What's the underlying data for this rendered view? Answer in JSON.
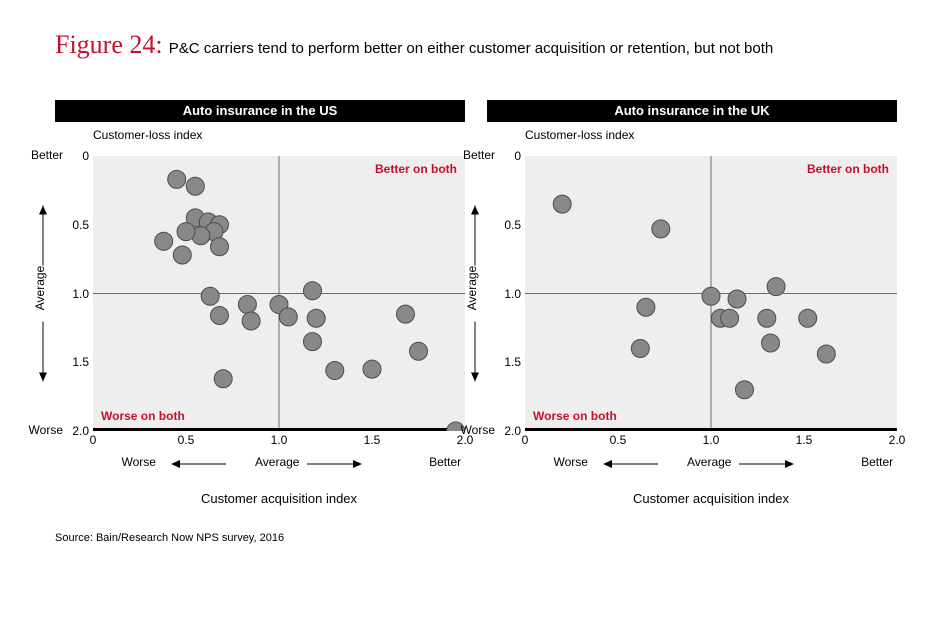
{
  "figure": {
    "number_label": "Figure 24:",
    "title": "P&C carriers tend to perform better on either customer acquisition or retention, but not both",
    "title_color": "#c8102e"
  },
  "source": "Source: Bain/Research Now NPS survey, 2016",
  "common": {
    "plot_bg": "#eeeeee",
    "page_bg": "#ffffff",
    "axis_line_color": "#000000",
    "divider_color": "#6b6b6b",
    "marker_fill": "#888888",
    "marker_stroke": "#4d4d4d",
    "marker_radius": 9,
    "annotation_color": "#c8102e",
    "font_family": "Helvetica Neue, Arial, sans-serif",
    "y_axis_title": "Customer-loss index",
    "x_axis_title": "Customer acquisition index",
    "xlim": [
      0,
      2.0
    ],
    "ylim": [
      0,
      2.0
    ],
    "x_ticks": [
      "0",
      "0.5",
      "1.0",
      "1.5",
      "2.0"
    ],
    "y_ticks": [
      "0",
      "0.5",
      "1.0",
      "1.5",
      "2.0"
    ],
    "y_better_label": "Better",
    "y_worse_label": "Worse",
    "x_worse_label": "Worse",
    "x_better_label": "Better",
    "average_label": "Average",
    "better_both_label": "Better on both",
    "worse_both_label": "Worse on both",
    "x_mid": 1.0,
    "y_mid": 1.0
  },
  "panels": [
    {
      "title": "Auto insurance in the US",
      "type": "scatter",
      "points": [
        {
          "x": 0.45,
          "y": 0.17
        },
        {
          "x": 0.55,
          "y": 0.22
        },
        {
          "x": 0.55,
          "y": 0.45
        },
        {
          "x": 0.62,
          "y": 0.48
        },
        {
          "x": 0.68,
          "y": 0.5
        },
        {
          "x": 0.65,
          "y": 0.55
        },
        {
          "x": 0.58,
          "y": 0.58
        },
        {
          "x": 0.5,
          "y": 0.55
        },
        {
          "x": 0.38,
          "y": 0.62
        },
        {
          "x": 0.68,
          "y": 0.66
        },
        {
          "x": 0.48,
          "y": 0.72
        },
        {
          "x": 0.63,
          "y": 1.02
        },
        {
          "x": 0.68,
          "y": 1.16
        },
        {
          "x": 0.83,
          "y": 1.08
        },
        {
          "x": 0.85,
          "y": 1.2
        },
        {
          "x": 1.0,
          "y": 1.08
        },
        {
          "x": 1.05,
          "y": 1.17
        },
        {
          "x": 1.18,
          "y": 0.98
        },
        {
          "x": 1.2,
          "y": 1.18
        },
        {
          "x": 1.18,
          "y": 1.35
        },
        {
          "x": 0.7,
          "y": 1.62
        },
        {
          "x": 1.3,
          "y": 1.56
        },
        {
          "x": 1.5,
          "y": 1.55
        },
        {
          "x": 1.68,
          "y": 1.15
        },
        {
          "x": 1.75,
          "y": 1.42
        },
        {
          "x": 1.95,
          "y": 2.0
        }
      ]
    },
    {
      "title": "Auto insurance in the UK",
      "type": "scatter",
      "points": [
        {
          "x": 0.2,
          "y": 0.35
        },
        {
          "x": 0.73,
          "y": 0.53
        },
        {
          "x": 0.65,
          "y": 1.1
        },
        {
          "x": 0.62,
          "y": 1.4
        },
        {
          "x": 1.0,
          "y": 1.02
        },
        {
          "x": 1.05,
          "y": 1.18
        },
        {
          "x": 1.1,
          "y": 1.18
        },
        {
          "x": 1.14,
          "y": 1.04
        },
        {
          "x": 1.3,
          "y": 1.18
        },
        {
          "x": 1.32,
          "y": 1.36
        },
        {
          "x": 1.35,
          "y": 0.95
        },
        {
          "x": 1.52,
          "y": 1.18
        },
        {
          "x": 1.18,
          "y": 1.7
        },
        {
          "x": 1.62,
          "y": 1.44
        }
      ]
    }
  ]
}
